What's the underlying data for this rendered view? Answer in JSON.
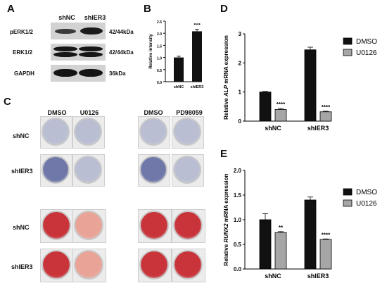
{
  "panels": {
    "a": "A",
    "b": "B",
    "c": "C",
    "d": "D",
    "e": "E"
  },
  "blot": {
    "columns": [
      "shNC",
      "shIER3"
    ],
    "rows": [
      {
        "name": "pERK1/2",
        "size": "42/44kDa"
      },
      {
        "name": "ERK1/2",
        "size": "42/44kDa"
      },
      {
        "name": "GAPDH",
        "size": "36kDa"
      }
    ]
  },
  "staining": {
    "treatments_left": [
      "DMSO",
      "U0126"
    ],
    "treatments_right": [
      "DMSO",
      "PD98059"
    ],
    "rows_top": [
      "shNC",
      "shIER3"
    ],
    "rows_bottom": [
      "shNC",
      "shIER3"
    ],
    "colors": {
      "alp_dark": "#6f78a8",
      "alp_light": "#b9bed3",
      "ars_dark": "#c8343a",
      "ars_light": "#e9a497"
    }
  },
  "chart_data": [
    {
      "id": "B",
      "type": "bar",
      "categories": [
        "shNC",
        "shIER3"
      ],
      "values": [
        1.0,
        2.08
      ],
      "errors": [
        0.05,
        0.08
      ],
      "ylabel": "Relative intensity",
      "ylim": [
        0,
        2.5
      ],
      "yticks": [
        "0.0",
        "0.5",
        "1.0",
        "1.5",
        "2.0",
        "2.5"
      ],
      "annotations": [
        "",
        "****"
      ],
      "colors": [
        "#111111",
        "#111111"
      ]
    },
    {
      "id": "D",
      "type": "bar",
      "categories": [
        "shNC",
        "shIER3"
      ],
      "series": [
        {
          "name": "DMSO",
          "values": [
            1.0,
            2.45
          ],
          "errors": [
            0.02,
            0.09
          ],
          "color": "#111111"
        },
        {
          "name": "U0126",
          "values": [
            0.4,
            0.32
          ],
          "errors": [
            0.03,
            0.02
          ],
          "color": "#a6a6a6"
        }
      ],
      "ylabel_prefix": "Relative ",
      "ylabel_gene": "ALP",
      "ylabel_suffix": " mRNA expression",
      "ylim": [
        0,
        3
      ],
      "yticks": [
        "0",
        "1",
        "2",
        "3"
      ],
      "annotations": [
        [
          "",
          "****"
        ],
        [
          "",
          "****"
        ]
      ],
      "legend_position": "top-right"
    },
    {
      "id": "E",
      "type": "bar",
      "categories": [
        "shNC",
        "shIER3"
      ],
      "series": [
        {
          "name": "DMSO",
          "values": [
            1.0,
            1.4
          ],
          "errors": [
            0.12,
            0.06
          ],
          "color": "#111111"
        },
        {
          "name": "U0126",
          "values": [
            0.74,
            0.6
          ],
          "errors": [
            0.02,
            0.01
          ],
          "color": "#a6a6a6"
        }
      ],
      "ylabel_prefix": "Relative ",
      "ylabel_gene": "RUNX2",
      "ylabel_suffix": " mRNA expression",
      "ylim": [
        0,
        2.0
      ],
      "yticks": [
        "0.0",
        "0.5",
        "1.0",
        "1.5",
        "2.0"
      ],
      "annotations": [
        [
          "",
          "**"
        ],
        [
          "",
          "****"
        ]
      ],
      "legend_position": "top-right"
    }
  ]
}
